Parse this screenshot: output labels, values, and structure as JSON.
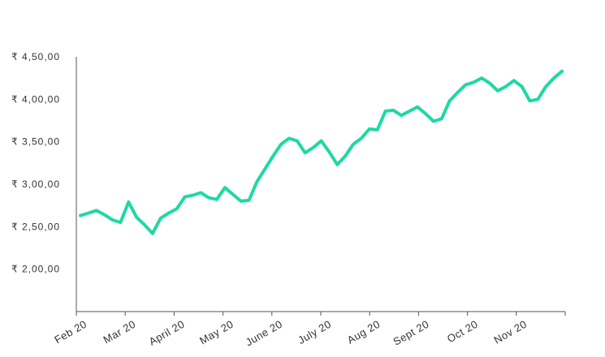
{
  "chart_data": {
    "type": "line",
    "title": "",
    "xlabel": "",
    "ylabel": "",
    "y_ticks": [
      "₹ 2,00,00",
      "₹ 2,50,00",
      "₹ 3,00,00",
      "₹ 3,50,00",
      "₹ 4,00,00",
      "₹ 4,50,00"
    ],
    "y_tick_values": [
      200,
      250,
      300,
      350,
      400,
      450
    ],
    "ylim": [
      150,
      450
    ],
    "x_ticks": [
      "Feb 20",
      "Mar 20",
      "April 20",
      "May 20",
      "June 20",
      "July 20",
      "Aug 20",
      "Sept 20",
      "Oct 20",
      "Nov 20"
    ],
    "grid": false,
    "legend": "none",
    "colors": {
      "line": "#1fd8a6",
      "axis": "#555555",
      "text": "#333333"
    },
    "series": [
      {
        "values": [
          263,
          266,
          269,
          264,
          258,
          255,
          279,
          261,
          252,
          242,
          260,
          266,
          271,
          285,
          287,
          290,
          284,
          282,
          296,
          288,
          280,
          281,
          303,
          318,
          333,
          347,
          354,
          351,
          337,
          343,
          351,
          338,
          323,
          333,
          347,
          354,
          365,
          364,
          386,
          387,
          381,
          386,
          391,
          383,
          374,
          377,
          398,
          408,
          417,
          420,
          425,
          419,
          410,
          415,
          422,
          415,
          398,
          400,
          415,
          425,
          433
        ]
      }
    ]
  }
}
